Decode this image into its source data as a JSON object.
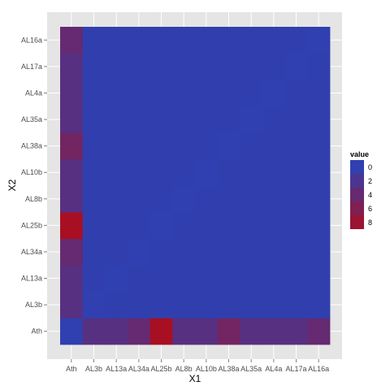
{
  "chart_data": {
    "type": "heatmap",
    "title": "",
    "xlabel": "X1",
    "ylabel": "X2",
    "x_categories": [
      "Ath",
      "AL3b",
      "AL13a",
      "AL34a",
      "AL25b",
      "AL8b",
      "AL10b",
      "AL38a",
      "AL35a",
      "AL4a",
      "AL17a",
      "AL16a"
    ],
    "y_categories": [
      "Ath",
      "AL3b",
      "AL13a",
      "AL34a",
      "AL25b",
      "AL8b",
      "AL10b",
      "AL38a",
      "AL35a",
      "AL4a",
      "AL17a",
      "AL16a"
    ],
    "values": [
      [
        0,
        3,
        3,
        4,
        9,
        3,
        3,
        5,
        3,
        3,
        3,
        4
      ],
      [
        3,
        0,
        0.1,
        0.1,
        0.1,
        0.1,
        0.1,
        0.1,
        0.1,
        0.1,
        0.1,
        0.1
      ],
      [
        3,
        0.1,
        0,
        0.1,
        0.1,
        0.1,
        0.1,
        0.1,
        0.1,
        0.1,
        0.1,
        0.1
      ],
      [
        4,
        0.1,
        0.1,
        0,
        0.1,
        0.1,
        0.1,
        0.1,
        0.1,
        0.1,
        0.1,
        0.1
      ],
      [
        9,
        0.1,
        0.1,
        0.1,
        0,
        0.1,
        0.1,
        0.1,
        0.1,
        0.1,
        0.1,
        0.1
      ],
      [
        3,
        0.1,
        0.1,
        0.1,
        0.1,
        0,
        0.1,
        0.1,
        0.1,
        0.1,
        0.1,
        0.1
      ],
      [
        3,
        0.1,
        0.1,
        0.1,
        0.1,
        0.1,
        0,
        0.1,
        0.1,
        0.1,
        0.1,
        0.1
      ],
      [
        5,
        0.1,
        0.1,
        0.1,
        0.1,
        0.1,
        0.1,
        0,
        0.1,
        0.1,
        0.1,
        0.1
      ],
      [
        3,
        0.1,
        0.1,
        0.1,
        0.1,
        0.1,
        0.1,
        0.1,
        0,
        0.1,
        0.1,
        0.1
      ],
      [
        3,
        0.1,
        0.1,
        0.1,
        0.1,
        0.1,
        0.1,
        0.1,
        0.1,
        0,
        0.1,
        0.1
      ],
      [
        3,
        0.1,
        0.1,
        0.1,
        0.1,
        0.1,
        0.1,
        0.1,
        0.1,
        0.1,
        0,
        0.1
      ],
      [
        4,
        0.1,
        0.1,
        0.1,
        0.1,
        0.1,
        0.1,
        0.1,
        0.1,
        0.1,
        0.1,
        0
      ]
    ],
    "value_range": [
      0,
      9
    ],
    "color_low": "#3040b0",
    "color_high": "#a80f22",
    "panel_background": "#e5e5e5",
    "grid": true,
    "legend": {
      "title": "value",
      "position": "right",
      "breaks": [
        0,
        2,
        4,
        6,
        8
      ],
      "labels": [
        "0",
        "2",
        "4",
        "6",
        "8"
      ]
    }
  }
}
